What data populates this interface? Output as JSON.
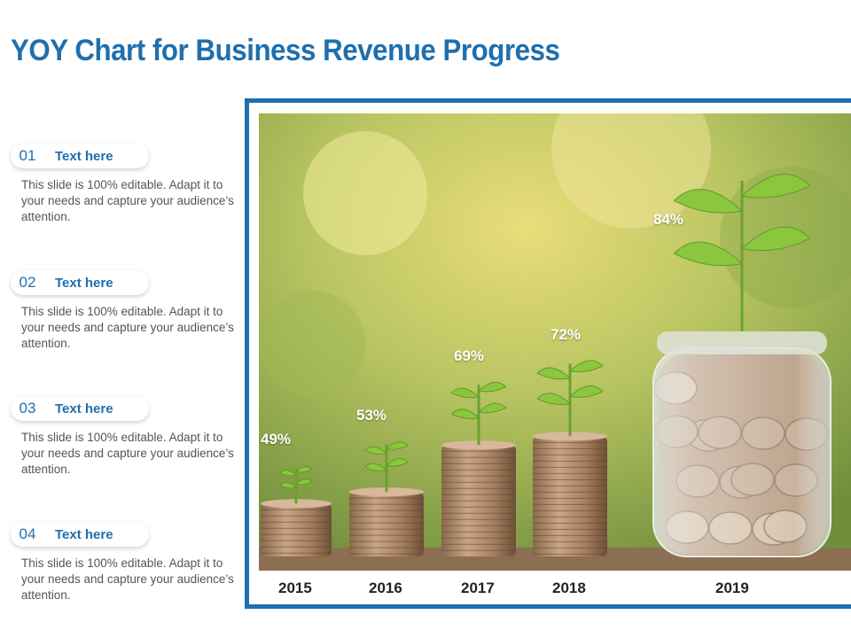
{
  "title": "YOY Chart for Business Revenue Progress",
  "items": [
    {
      "num": "01",
      "label": "Text here",
      "desc": "This slide is 100% editable. Adapt it to your needs and capture your audience’s attention."
    },
    {
      "num": "02",
      "label": "Text here",
      "desc": "This slide is 100% editable. Adapt it to your needs and capture your audience’s attention."
    },
    {
      "num": "03",
      "label": "Text here",
      "desc": "This slide is 100% editable. Adapt it to your needs and capture your audience’s attention."
    },
    {
      "num": "04",
      "label": "Text here",
      "desc": "This slide is 100% editable. Adapt it to your needs and capture your audience’s attention."
    }
  ],
  "colors": {
    "accent": "#1f6fae",
    "text": "#555555"
  },
  "chart_data": {
    "type": "bar",
    "categories": [
      "2015",
      "2016",
      "2017",
      "2018",
      "2019"
    ],
    "values": [
      49,
      53,
      69,
      72,
      84
    ],
    "value_labels": [
      "49%",
      "53%",
      "69%",
      "72%",
      "84%"
    ],
    "title": "",
    "xlabel": "",
    "ylabel": "",
    "ylim": [
      0,
      100
    ],
    "style": "coin-stacks"
  }
}
